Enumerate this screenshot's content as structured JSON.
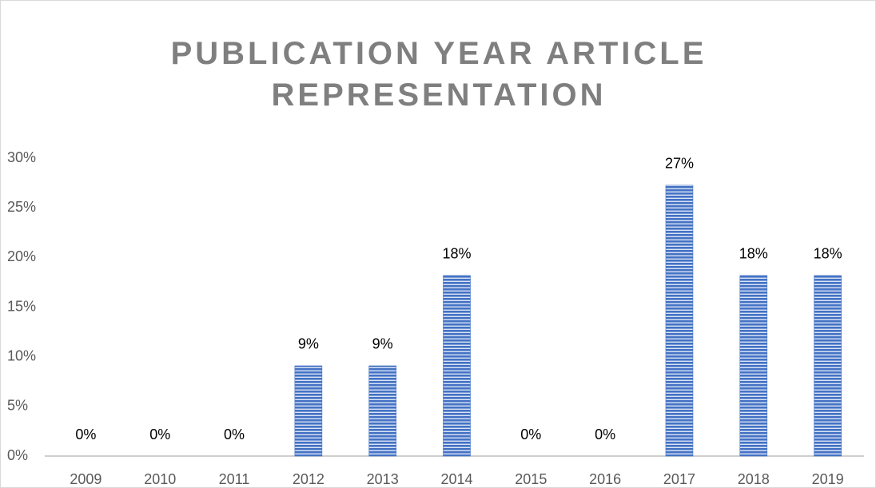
{
  "chart_data": {
    "type": "bar",
    "title": "PUBLICATION YEAR ARTICLE REPRESENTATION",
    "categories": [
      "2009",
      "2010",
      "2011",
      "2012",
      "2013",
      "2014",
      "2015",
      "2016",
      "2017",
      "2018",
      "2019"
    ],
    "values": [
      0,
      0,
      0,
      9.09,
      9.09,
      18.18,
      0,
      0,
      27.27,
      18.18,
      18.18
    ],
    "value_labels": [
      "0%",
      "0%",
      "0%",
      "9%",
      "9%",
      "18%",
      "0%",
      "0%",
      "27%",
      "18%",
      "18%"
    ],
    "color": "#4472c4",
    "ylim": [
      0,
      30
    ],
    "yticks": [
      {
        "value": 0,
        "label": "0%"
      },
      {
        "value": 5,
        "label": "5%"
      },
      {
        "value": 10,
        "label": "10%"
      },
      {
        "value": 15,
        "label": "15%"
      },
      {
        "value": 20,
        "label": "20%"
      },
      {
        "value": 25,
        "label": "25%"
      },
      {
        "value": 30,
        "label": "30%"
      }
    ],
    "grid": false
  }
}
